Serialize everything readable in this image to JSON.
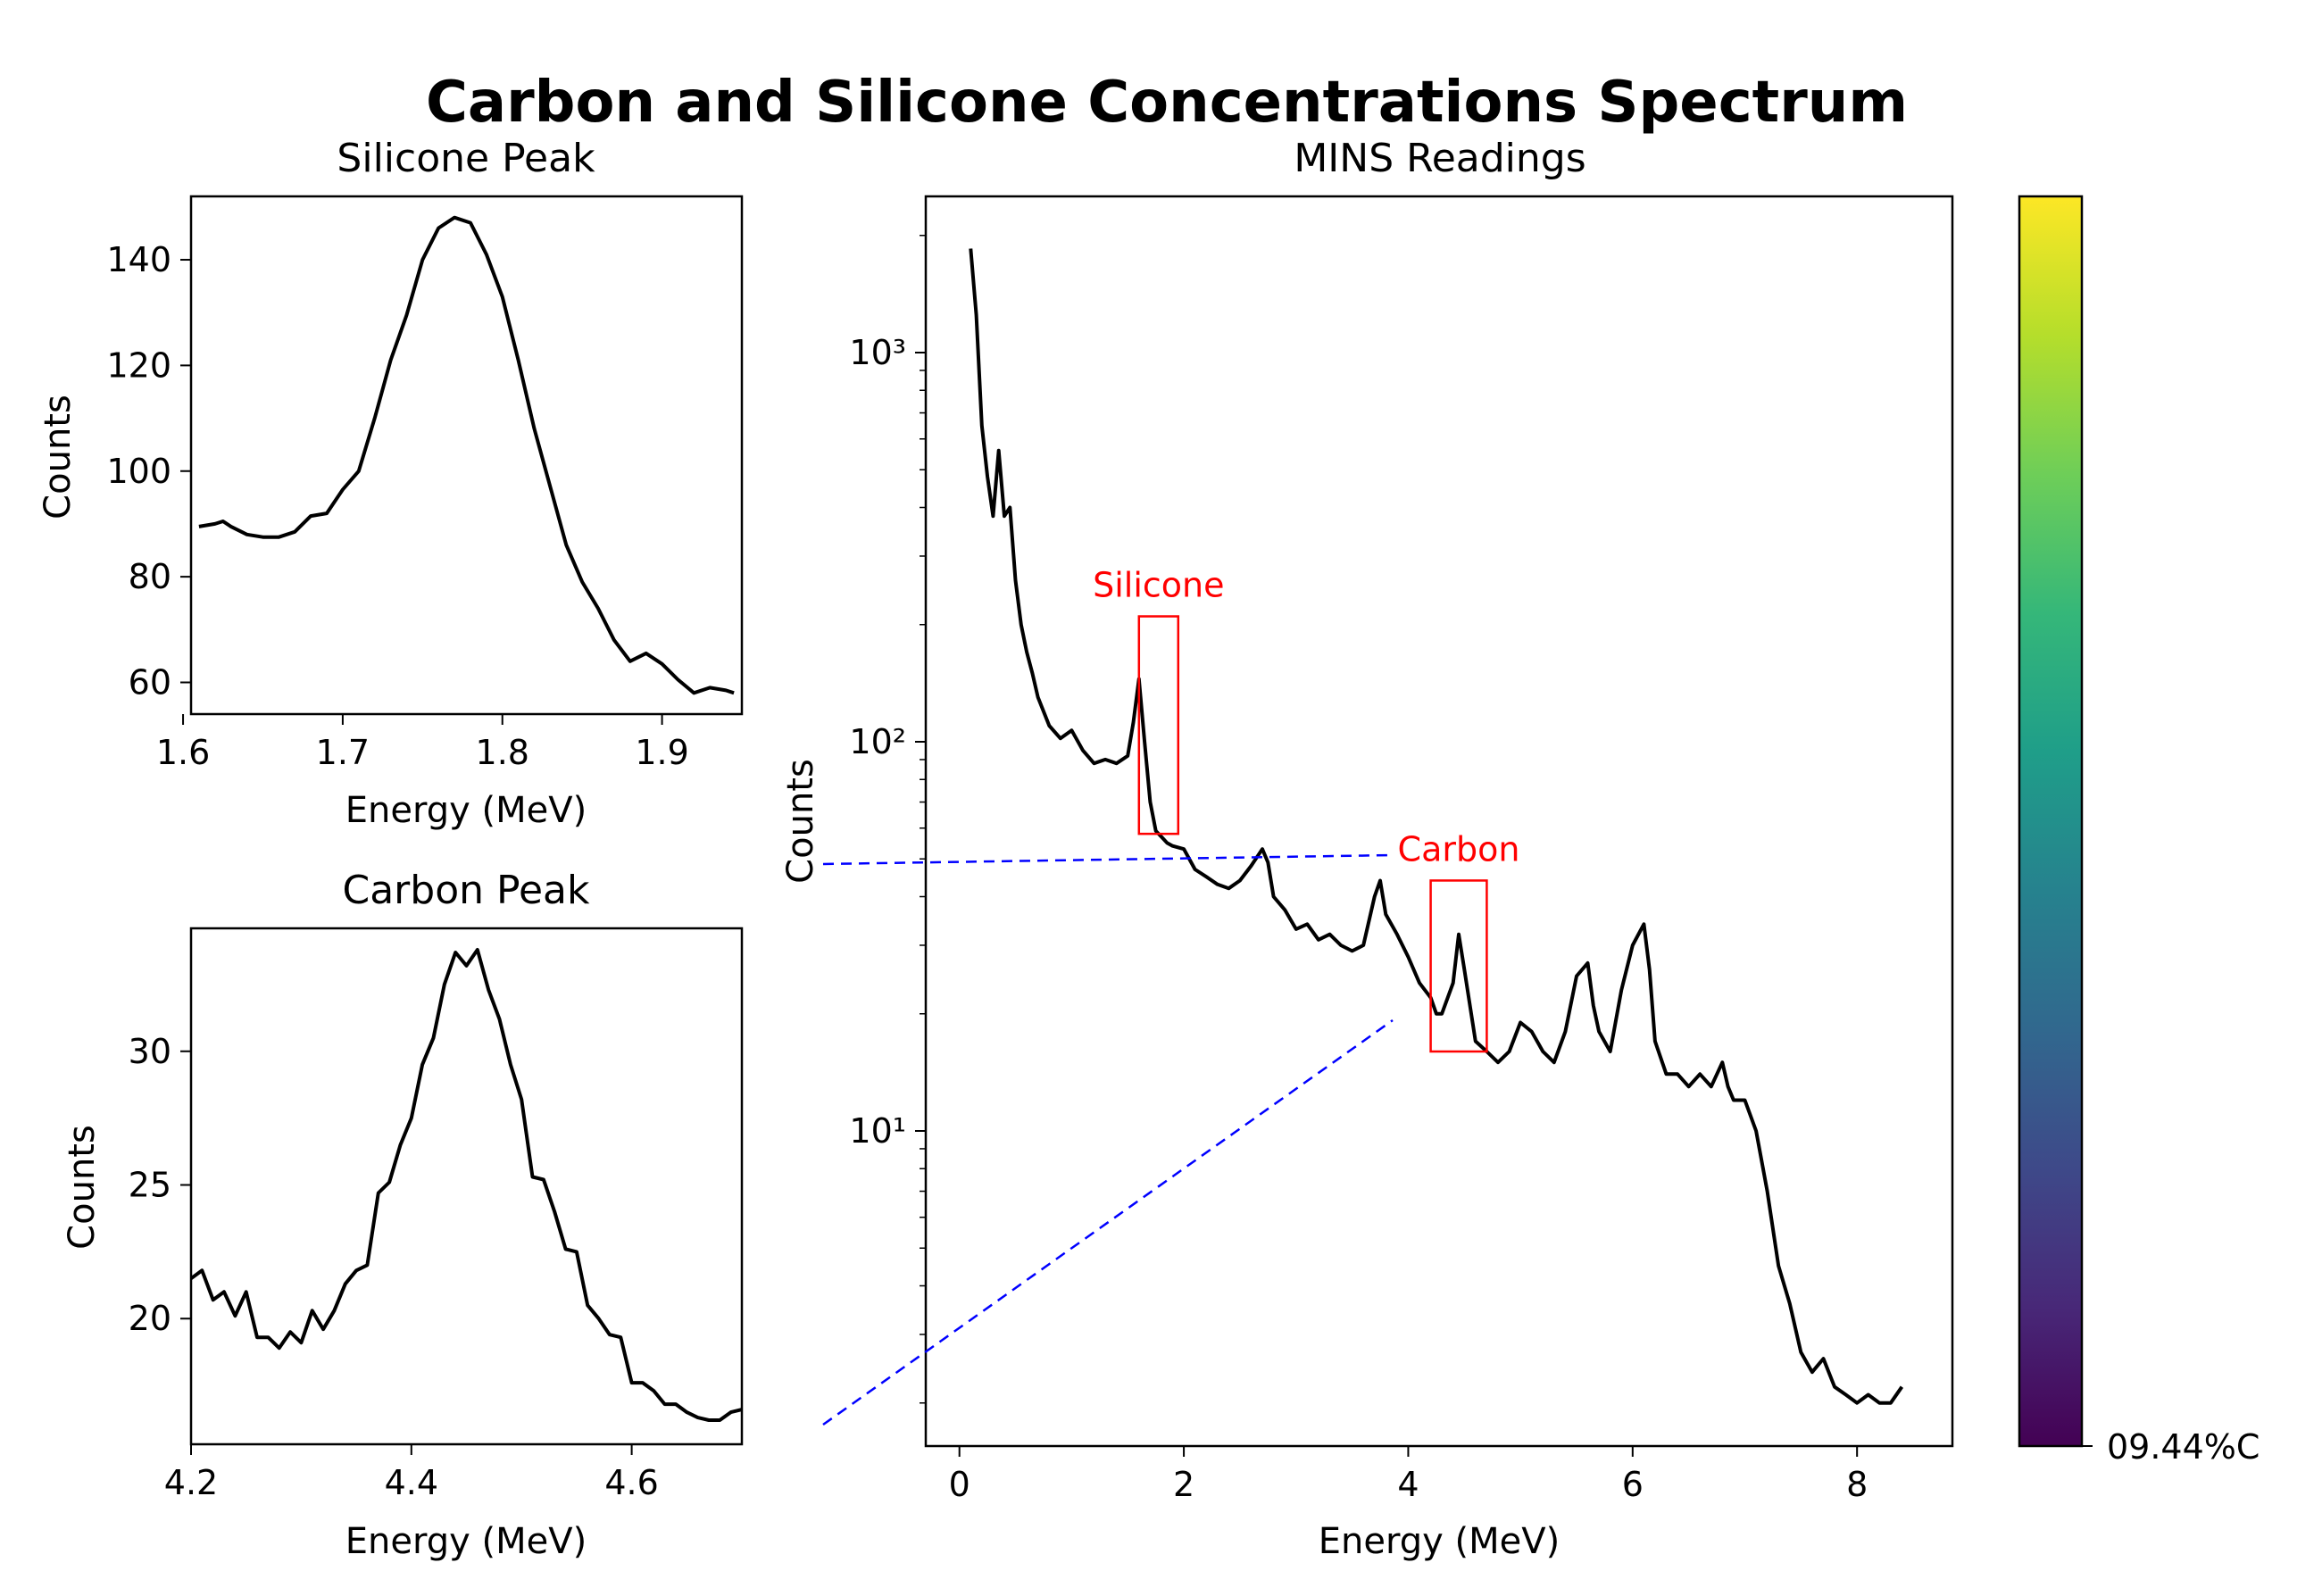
{
  "figure": {
    "suptitle": "Carbon and Silicone Concentrations Spectrum"
  },
  "colorbar": {
    "label": "09.44%C",
    "colormap": "viridis",
    "colors": [
      "#440154",
      "#482878",
      "#3e4989",
      "#31688e",
      "#26828e",
      "#1f9e89",
      "#35b779",
      "#6ece58",
      "#b5de2b",
      "#fde725"
    ]
  },
  "chart_data": [
    {
      "id": "silicone-peak",
      "type": "line",
      "title": "Silicone Peak",
      "xlabel": "Energy (MeV)",
      "ylabel": "Counts",
      "xlim": [
        1.605,
        1.95
      ],
      "ylim": [
        54,
        152
      ],
      "xticks": [
        1.6,
        1.7,
        1.8,
        1.9
      ],
      "xtick_labels": [
        "1.6",
        "1.7",
        "1.8",
        "1.9"
      ],
      "yticks": [
        60,
        80,
        100,
        120,
        140
      ],
      "ytick_labels": [
        "60",
        "80",
        "100",
        "120",
        "140"
      ],
      "line_color": "#000000",
      "x": [
        1.61,
        1.62,
        1.625,
        1.63,
        1.64,
        1.65,
        1.66,
        1.67,
        1.68,
        1.69,
        1.7,
        1.71,
        1.72,
        1.73,
        1.74,
        1.75,
        1.76,
        1.77,
        1.78,
        1.79,
        1.8,
        1.81,
        1.82,
        1.83,
        1.84,
        1.85,
        1.86,
        1.87,
        1.88,
        1.89,
        1.9,
        1.91,
        1.92,
        1.93,
        1.94,
        1.945
      ],
      "y": [
        89.5,
        90,
        90.5,
        89.5,
        88,
        87.5,
        87.5,
        88.5,
        91.5,
        92,
        96.5,
        100,
        110,
        121,
        129.5,
        140,
        146,
        148,
        147,
        141,
        133,
        121,
        108,
        97,
        86,
        79,
        74,
        68,
        64,
        65.5,
        63.5,
        60.5,
        58,
        59,
        58.5,
        58
      ]
    },
    {
      "id": "carbon-peak",
      "type": "line",
      "title": "Carbon Peak",
      "xlabel": "Energy (MeV)",
      "ylabel": "Counts",
      "xlim": [
        4.2,
        4.7
      ],
      "ylim": [
        15.3,
        34.6
      ],
      "xticks": [
        4.2,
        4.4,
        4.6
      ],
      "xtick_labels": [
        "4.2",
        "4.4",
        "4.6"
      ],
      "yticks": [
        20,
        25,
        30
      ],
      "ytick_labels": [
        "20",
        "25",
        "30"
      ],
      "line_color": "#000000",
      "x": [
        4.2,
        4.21,
        4.22,
        4.23,
        4.24,
        4.25,
        4.26,
        4.27,
        4.28,
        4.29,
        4.3,
        4.31,
        4.32,
        4.33,
        4.34,
        4.35,
        4.36,
        4.37,
        4.38,
        4.39,
        4.4,
        4.41,
        4.42,
        4.43,
        4.44,
        4.45,
        4.46,
        4.47,
        4.48,
        4.49,
        4.5,
        4.51,
        4.52,
        4.53,
        4.54,
        4.55,
        4.56,
        4.57,
        4.58,
        4.59,
        4.6,
        4.61,
        4.62,
        4.63,
        4.64,
        4.65,
        4.66,
        4.67,
        4.68,
        4.69,
        4.7
      ],
      "y": [
        21.5,
        21.8,
        20.7,
        21,
        20.1,
        21,
        19.3,
        19.3,
        18.9,
        19.5,
        19.1,
        20.3,
        19.6,
        20.3,
        21.3,
        21.8,
        22,
        24.7,
        25.1,
        26.5,
        27.5,
        29.5,
        30.5,
        32.5,
        33.7,
        33.2,
        33.8,
        32.3,
        31.2,
        29.5,
        28.2,
        25.3,
        25.2,
        24,
        22.6,
        22.5,
        20.5,
        20,
        19.4,
        19.3,
        17.6,
        17.6,
        17.3,
        16.8,
        16.8,
        16.5,
        16.3,
        16.2,
        16.2,
        16.5,
        16.6
      ]
    },
    {
      "id": "mins-readings",
      "type": "line",
      "title": "MINS Readings",
      "xlabel": "Energy (MeV)",
      "ylabel": "Counts",
      "xscale": "linear",
      "yscale": "log",
      "xlim": [
        -0.3,
        8.85
      ],
      "ylim": [
        1.55,
        2520
      ],
      "xticks": [
        0,
        2,
        4,
        6,
        8
      ],
      "xtick_labels": [
        "0",
        "2",
        "4",
        "6",
        "8"
      ],
      "yticks": [
        10,
        100,
        1000
      ],
      "ytick_labels": [
        "10¹",
        "10²",
        "10³"
      ],
      "line_color": "#000000",
      "x": [
        0.1,
        0.15,
        0.2,
        0.25,
        0.3,
        0.35,
        0.4,
        0.45,
        0.5,
        0.55,
        0.6,
        0.65,
        0.7,
        0.8,
        0.9,
        1.0,
        1.1,
        1.2,
        1.3,
        1.4,
        1.5,
        1.55,
        1.6,
        1.65,
        1.7,
        1.75,
        1.8,
        1.85,
        1.9,
        2.0,
        2.1,
        2.2,
        2.3,
        2.4,
        2.5,
        2.6,
        2.7,
        2.75,
        2.8,
        2.9,
        3.0,
        3.1,
        3.2,
        3.3,
        3.4,
        3.5,
        3.6,
        3.7,
        3.75,
        3.8,
        3.9,
        4.0,
        4.1,
        4.2,
        4.25,
        4.3,
        4.4,
        4.45,
        4.5,
        4.6,
        4.7,
        4.8,
        4.9,
        5.0,
        5.1,
        5.2,
        5.3,
        5.4,
        5.5,
        5.6,
        5.65,
        5.7,
        5.8,
        5.9,
        6.0,
        6.1,
        6.15,
        6.2,
        6.3,
        6.4,
        6.5,
        6.6,
        6.7,
        6.8,
        6.85,
        6.9,
        7.0,
        7.1,
        7.2,
        7.3,
        7.4,
        7.5,
        7.6,
        7.7,
        7.8,
        7.9,
        8.0,
        8.1,
        8.2,
        8.3,
        8.4
      ],
      "y": [
        1850,
        1250,
        650,
        480,
        380,
        560,
        380,
        400,
        260,
        200,
        170,
        150,
        130,
        110,
        102,
        107,
        95,
        88,
        90,
        88,
        92,
        112,
        145,
        100,
        70,
        59,
        57,
        55,
        54,
        53,
        47,
        45,
        43,
        42,
        44,
        48,
        53,
        49,
        40,
        37,
        33,
        34,
        31,
        32,
        30,
        29,
        30,
        40,
        44,
        36,
        32,
        28,
        24,
        22,
        20,
        20,
        24,
        32,
        26,
        17,
        16,
        15,
        16,
        19,
        18,
        16,
        15,
        18,
        25,
        27,
        21,
        18,
        16,
        23,
        30,
        34,
        26,
        17,
        14,
        14,
        13,
        14,
        13,
        15,
        13,
        12,
        12,
        10,
        7,
        4.5,
        3.6,
        2.7,
        2.4,
        2.6,
        2.2,
        2.1,
        2.0,
        2.1,
        2.0,
        2.0,
        2.2
      ]
    }
  ],
  "annotations": {
    "silicone": {
      "text": "Silicone",
      "color": "#ff0000",
      "x_range": [
        1.6,
        1.95
      ],
      "y_range": [
        58,
        210
      ]
    },
    "carbon": {
      "text": "Carbon",
      "color": "#ff0000",
      "x_range": [
        4.2,
        4.7
      ],
      "y_range": [
        16,
        44
      ]
    },
    "zoom_lines": {
      "color": "#0000ff",
      "style": "dashed"
    }
  }
}
